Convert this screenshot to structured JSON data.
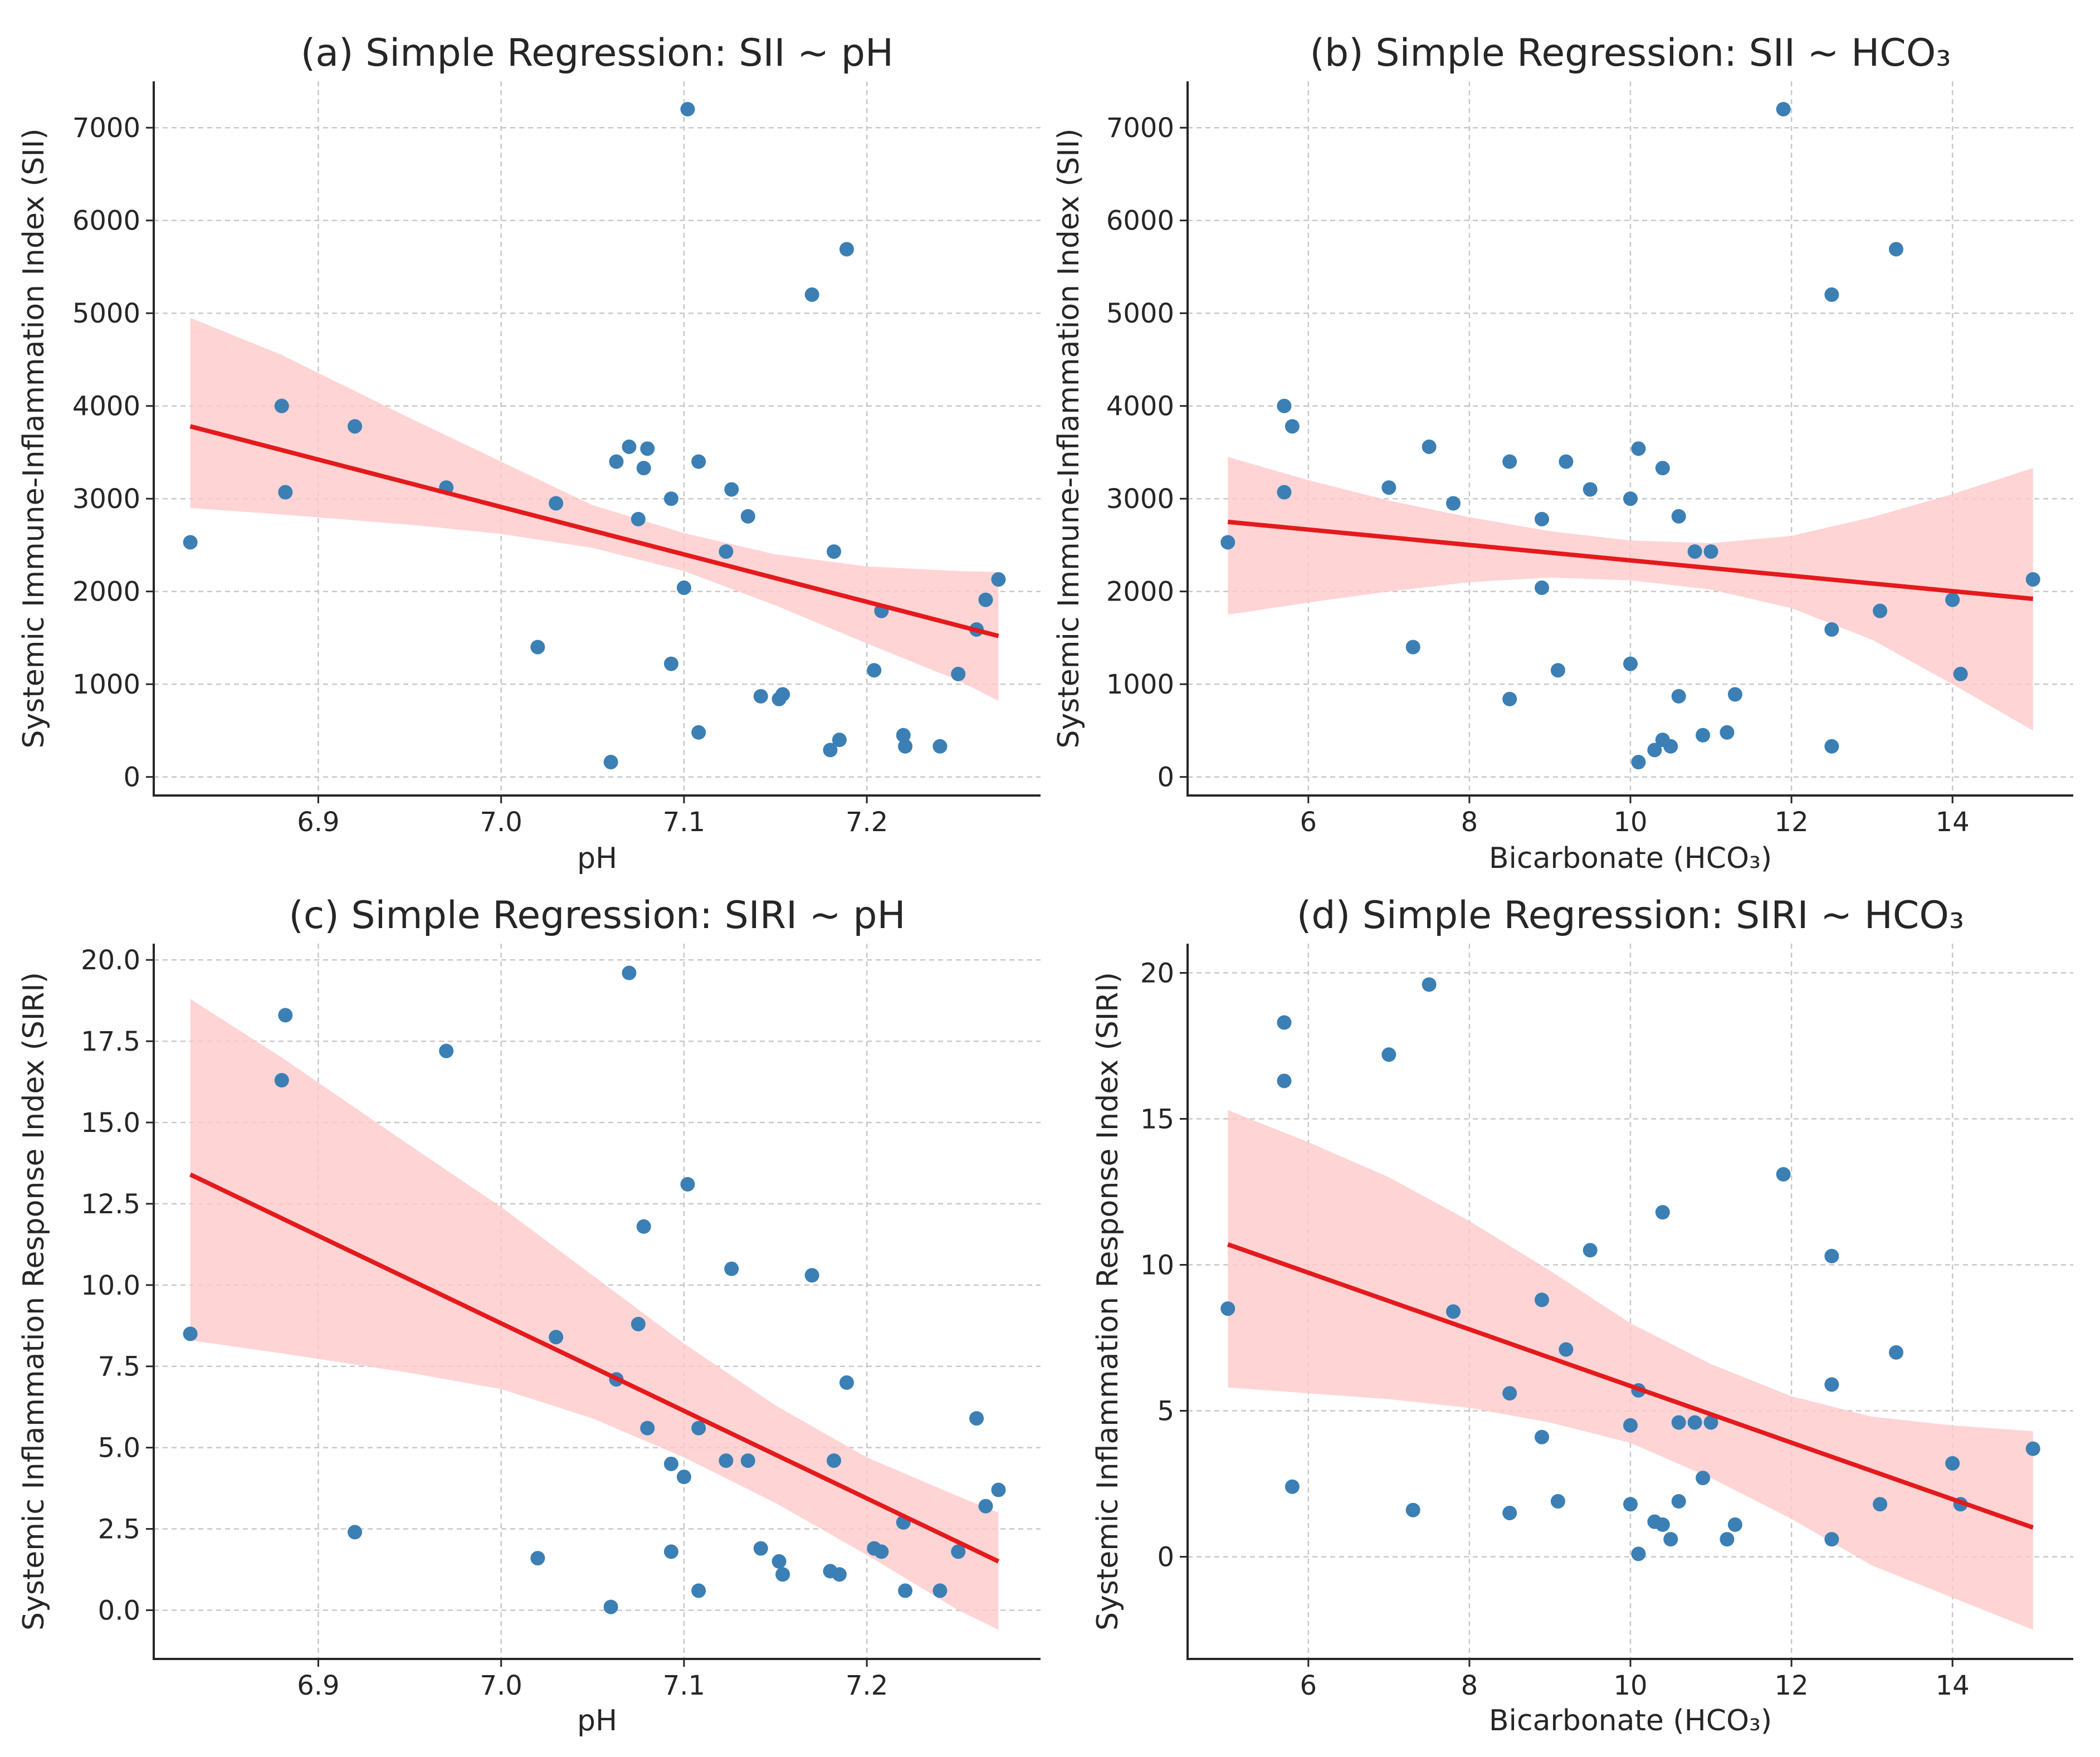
{
  "chart_data": [
    {
      "type": "scatter",
      "title": "(a) Simple Regression: SII ~ pH",
      "xlabel": "pH",
      "ylabel": "Systemic Immune-Inflammation Index (SII)",
      "xlim": [
        6.81,
        7.295
      ],
      "ylim": [
        -200,
        7500
      ],
      "xticks": [
        "6.9",
        "7.0",
        "7.1",
        "7.2"
      ],
      "yticks": [
        "0",
        "1000",
        "2000",
        "3000",
        "4000",
        "5000",
        "6000",
        "7000"
      ],
      "grid": true,
      "point_color": "#3b7fb5",
      "line_color": "#e41a1c",
      "band_color": "#ffc9cb",
      "points": [
        {
          "x": 6.83,
          "y": 2530
        },
        {
          "x": 6.88,
          "y": 4000
        },
        {
          "x": 6.882,
          "y": 3070
        },
        {
          "x": 6.92,
          "y": 3780
        },
        {
          "x": 6.97,
          "y": 3120
        },
        {
          "x": 7.02,
          "y": 1400
        },
        {
          "x": 7.03,
          "y": 2950
        },
        {
          "x": 7.06,
          "y": 160
        },
        {
          "x": 7.063,
          "y": 3400
        },
        {
          "x": 7.07,
          "y": 3560
        },
        {
          "x": 7.075,
          "y": 2780
        },
        {
          "x": 7.078,
          "y": 3330
        },
        {
          "x": 7.08,
          "y": 3540
        },
        {
          "x": 7.093,
          "y": 3000
        },
        {
          "x": 7.093,
          "y": 1220
        },
        {
          "x": 7.1,
          "y": 2040
        },
        {
          "x": 7.102,
          "y": 7200
        },
        {
          "x": 7.108,
          "y": 3400
        },
        {
          "x": 7.108,
          "y": 480
        },
        {
          "x": 7.123,
          "y": 2430
        },
        {
          "x": 7.126,
          "y": 3100
        },
        {
          "x": 7.135,
          "y": 2810
        },
        {
          "x": 7.142,
          "y": 870
        },
        {
          "x": 7.152,
          "y": 840
        },
        {
          "x": 7.154,
          "y": 890
        },
        {
          "x": 7.17,
          "y": 5200
        },
        {
          "x": 7.18,
          "y": 290
        },
        {
          "x": 7.182,
          "y": 2430
        },
        {
          "x": 7.185,
          "y": 400
        },
        {
          "x": 7.189,
          "y": 5690
        },
        {
          "x": 7.204,
          "y": 1150
        },
        {
          "x": 7.208,
          "y": 1790
        },
        {
          "x": 7.22,
          "y": 450
        },
        {
          "x": 7.221,
          "y": 330
        },
        {
          "x": 7.24,
          "y": 330
        },
        {
          "x": 7.25,
          "y": 1110
        },
        {
          "x": 7.26,
          "y": 1590
        },
        {
          "x": 7.265,
          "y": 1910
        },
        {
          "x": 7.272,
          "y": 2130
        }
      ],
      "fit": {
        "x": [
          6.83,
          7.272
        ],
        "y": [
          3780,
          1520
        ]
      },
      "band": {
        "x": [
          6.83,
          6.88,
          6.95,
          7.0,
          7.05,
          7.1,
          7.15,
          7.2,
          7.25,
          7.272
        ],
        "upper": [
          4950,
          4550,
          3870,
          3400,
          2930,
          2630,
          2400,
          2270,
          2220,
          2210
        ],
        "lower": [
          2900,
          2830,
          2720,
          2620,
          2470,
          2220,
          1850,
          1440,
          1040,
          820
        ]
      }
    },
    {
      "type": "scatter",
      "title": "(b) Simple Regression: SII ~ HCO₃",
      "xlabel": "Bicarbonate (HCO₃)",
      "ylabel": "Systemic Immune-Inflammation Index (SII)",
      "xlim": [
        4.5,
        15.5
      ],
      "ylim": [
        -200,
        7500
      ],
      "xticks": [
        "6",
        "8",
        "10",
        "12",
        "14"
      ],
      "yticks": [
        "0",
        "1000",
        "2000",
        "3000",
        "4000",
        "5000",
        "6000",
        "7000"
      ],
      "grid": true,
      "point_color": "#3b7fb5",
      "line_color": "#e41a1c",
      "band_color": "#ffc9cb",
      "points": [
        {
          "x": 5.0,
          "y": 2530
        },
        {
          "x": 5.7,
          "y": 4000
        },
        {
          "x": 5.7,
          "y": 3070
        },
        {
          "x": 5.8,
          "y": 3780
        },
        {
          "x": 7.0,
          "y": 3120
        },
        {
          "x": 7.3,
          "y": 1400
        },
        {
          "x": 7.5,
          "y": 3560
        },
        {
          "x": 7.8,
          "y": 2950
        },
        {
          "x": 8.5,
          "y": 3400
        },
        {
          "x": 8.5,
          "y": 840
        },
        {
          "x": 8.9,
          "y": 2780
        },
        {
          "x": 8.9,
          "y": 2040
        },
        {
          "x": 9.1,
          "y": 1150
        },
        {
          "x": 9.2,
          "y": 3400
        },
        {
          "x": 9.5,
          "y": 3100
        },
        {
          "x": 10.0,
          "y": 3000
        },
        {
          "x": 10.0,
          "y": 1220
        },
        {
          "x": 10.1,
          "y": 3540
        },
        {
          "x": 10.1,
          "y": 160
        },
        {
          "x": 10.3,
          "y": 290
        },
        {
          "x": 10.4,
          "y": 3330
        },
        {
          "x": 10.4,
          "y": 400
        },
        {
          "x": 10.5,
          "y": 330
        },
        {
          "x": 10.6,
          "y": 2810
        },
        {
          "x": 10.6,
          "y": 870
        },
        {
          "x": 10.8,
          "y": 2430
        },
        {
          "x": 10.9,
          "y": 450
        },
        {
          "x": 11.0,
          "y": 2430
        },
        {
          "x": 11.2,
          "y": 480
        },
        {
          "x": 11.3,
          "y": 890
        },
        {
          "x": 11.9,
          "y": 7200
        },
        {
          "x": 12.5,
          "y": 5200
        },
        {
          "x": 12.5,
          "y": 1590
        },
        {
          "x": 12.5,
          "y": 330
        },
        {
          "x": 13.1,
          "y": 1790
        },
        {
          "x": 13.3,
          "y": 5690
        },
        {
          "x": 14.0,
          "y": 1910
        },
        {
          "x": 14.1,
          "y": 1110
        },
        {
          "x": 15.0,
          "y": 2130
        }
      ],
      "fit": {
        "x": [
          5.0,
          15.0
        ],
        "y": [
          2750,
          1920
        ]
      },
      "band": {
        "x": [
          5.0,
          6.0,
          7.0,
          8.0,
          9.0,
          10.0,
          11.0,
          12.0,
          13.0,
          14.0,
          15.0
        ],
        "upper": [
          3450,
          3200,
          2980,
          2800,
          2650,
          2550,
          2520,
          2600,
          2800,
          3050,
          3330
        ],
        "lower": [
          1750,
          1880,
          2000,
          2100,
          2150,
          2120,
          2020,
          1820,
          1480,
          1000,
          500
        ]
      }
    },
    {
      "type": "scatter",
      "title": "(c) Simple Regression: SIRI ~ pH",
      "xlabel": "pH",
      "ylabel": "Systemic Inflammation Response Index (SIRI)",
      "xlim": [
        6.81,
        7.295
      ],
      "ylim": [
        -1.5,
        20.5
      ],
      "xticks": [
        "6.9",
        "7.0",
        "7.1",
        "7.2"
      ],
      "yticks": [
        "0.0",
        "2.5",
        "5.0",
        "7.5",
        "10.0",
        "12.5",
        "15.0",
        "17.5",
        "20.0"
      ],
      "grid": true,
      "point_color": "#3b7fb5",
      "line_color": "#e41a1c",
      "band_color": "#ffc9cb",
      "points": [
        {
          "x": 6.83,
          "y": 8.5
        },
        {
          "x": 6.88,
          "y": 16.3
        },
        {
          "x": 6.882,
          "y": 18.3
        },
        {
          "x": 6.92,
          "y": 2.4
        },
        {
          "x": 6.97,
          "y": 17.2
        },
        {
          "x": 7.02,
          "y": 1.6
        },
        {
          "x": 7.03,
          "y": 8.4
        },
        {
          "x": 7.06,
          "y": 0.1
        },
        {
          "x": 7.063,
          "y": 7.1
        },
        {
          "x": 7.07,
          "y": 19.6
        },
        {
          "x": 7.075,
          "y": 8.8
        },
        {
          "x": 7.078,
          "y": 11.8
        },
        {
          "x": 7.08,
          "y": 5.6
        },
        {
          "x": 7.093,
          "y": 4.5
        },
        {
          "x": 7.093,
          "y": 1.8
        },
        {
          "x": 7.1,
          "y": 4.1
        },
        {
          "x": 7.102,
          "y": 13.1
        },
        {
          "x": 7.108,
          "y": 5.6
        },
        {
          "x": 7.108,
          "y": 0.6
        },
        {
          "x": 7.123,
          "y": 4.6
        },
        {
          "x": 7.126,
          "y": 10.5
        },
        {
          "x": 7.135,
          "y": 4.6
        },
        {
          "x": 7.142,
          "y": 1.9
        },
        {
          "x": 7.152,
          "y": 1.5
        },
        {
          "x": 7.154,
          "y": 1.1
        },
        {
          "x": 7.17,
          "y": 10.3
        },
        {
          "x": 7.18,
          "y": 1.2
        },
        {
          "x": 7.182,
          "y": 4.6
        },
        {
          "x": 7.185,
          "y": 1.1
        },
        {
          "x": 7.189,
          "y": 7.0
        },
        {
          "x": 7.204,
          "y": 1.9
        },
        {
          "x": 7.208,
          "y": 1.8
        },
        {
          "x": 7.22,
          "y": 2.7
        },
        {
          "x": 7.221,
          "y": 0.6
        },
        {
          "x": 7.24,
          "y": 0.6
        },
        {
          "x": 7.25,
          "y": 1.8
        },
        {
          "x": 7.26,
          "y": 5.9
        },
        {
          "x": 7.265,
          "y": 3.2
        },
        {
          "x": 7.272,
          "y": 3.7
        }
      ],
      "fit": {
        "x": [
          6.83,
          7.272
        ],
        "y": [
          13.4,
          1.5
        ]
      },
      "band": {
        "x": [
          6.83,
          6.88,
          6.95,
          7.0,
          7.05,
          7.1,
          7.15,
          7.2,
          7.25,
          7.272
        ],
        "upper": [
          18.8,
          17.0,
          14.3,
          12.4,
          10.3,
          8.2,
          6.3,
          4.7,
          3.5,
          3.0
        ],
        "lower": [
          8.3,
          7.9,
          7.3,
          6.8,
          5.9,
          4.7,
          3.3,
          1.7,
          0.0,
          -0.6
        ]
      }
    },
    {
      "type": "scatter",
      "title": "(d) Simple Regression: SIRI ~ HCO₃",
      "xlabel": "Bicarbonate (HCO₃)",
      "ylabel": "Systemic Inflammation Response Index (SIRI)",
      "xlim": [
        4.5,
        15.5
      ],
      "ylim": [
        -3.5,
        21.0
      ],
      "xticks": [
        "6",
        "8",
        "10",
        "12",
        "14"
      ],
      "yticks": [
        "0",
        "5",
        "10",
        "15",
        "20"
      ],
      "grid": true,
      "point_color": "#3b7fb5",
      "line_color": "#e41a1c",
      "band_color": "#ffc9cb",
      "points": [
        {
          "x": 5.0,
          "y": 8.5
        },
        {
          "x": 5.7,
          "y": 16.3
        },
        {
          "x": 5.7,
          "y": 18.3
        },
        {
          "x": 5.8,
          "y": 2.4
        },
        {
          "x": 7.0,
          "y": 17.2
        },
        {
          "x": 7.3,
          "y": 1.6
        },
        {
          "x": 7.5,
          "y": 19.6
        },
        {
          "x": 7.8,
          "y": 8.4
        },
        {
          "x": 8.5,
          "y": 5.6
        },
        {
          "x": 8.5,
          "y": 1.5
        },
        {
          "x": 8.9,
          "y": 8.8
        },
        {
          "x": 8.9,
          "y": 4.1
        },
        {
          "x": 9.1,
          "y": 1.9
        },
        {
          "x": 9.2,
          "y": 7.1
        },
        {
          "x": 9.5,
          "y": 10.5
        },
        {
          "x": 10.0,
          "y": 4.5
        },
        {
          "x": 10.0,
          "y": 1.8
        },
        {
          "x": 10.1,
          "y": 5.7
        },
        {
          "x": 10.1,
          "y": 0.1
        },
        {
          "x": 10.3,
          "y": 1.2
        },
        {
          "x": 10.4,
          "y": 11.8
        },
        {
          "x": 10.4,
          "y": 1.1
        },
        {
          "x": 10.5,
          "y": 0.6
        },
        {
          "x": 10.6,
          "y": 4.6
        },
        {
          "x": 10.6,
          "y": 1.9
        },
        {
          "x": 10.8,
          "y": 4.6
        },
        {
          "x": 10.9,
          "y": 2.7
        },
        {
          "x": 11.0,
          "y": 4.6
        },
        {
          "x": 11.2,
          "y": 0.6
        },
        {
          "x": 11.3,
          "y": 1.1
        },
        {
          "x": 11.9,
          "y": 13.1
        },
        {
          "x": 12.5,
          "y": 10.3
        },
        {
          "x": 12.5,
          "y": 5.9
        },
        {
          "x": 12.5,
          "y": 0.6
        },
        {
          "x": 13.1,
          "y": 1.8
        },
        {
          "x": 13.3,
          "y": 7.0
        },
        {
          "x": 14.0,
          "y": 3.2
        },
        {
          "x": 14.1,
          "y": 1.8
        },
        {
          "x": 15.0,
          "y": 3.7
        }
      ],
      "fit": {
        "x": [
          5.0,
          15.0
        ],
        "y": [
          10.7,
          1.0
        ]
      },
      "band": {
        "x": [
          5.0,
          6.0,
          7.0,
          8.0,
          9.0,
          10.0,
          11.0,
          12.0,
          13.0,
          14.0,
          15.0
        ],
        "upper": [
          15.3,
          14.2,
          13.0,
          11.5,
          9.8,
          8.0,
          6.6,
          5.5,
          4.8,
          4.5,
          4.3
        ],
        "lower": [
          5.8,
          5.6,
          5.4,
          5.1,
          4.6,
          3.9,
          2.7,
          1.3,
          -0.3,
          -1.4,
          -2.5
        ]
      }
    }
  ]
}
